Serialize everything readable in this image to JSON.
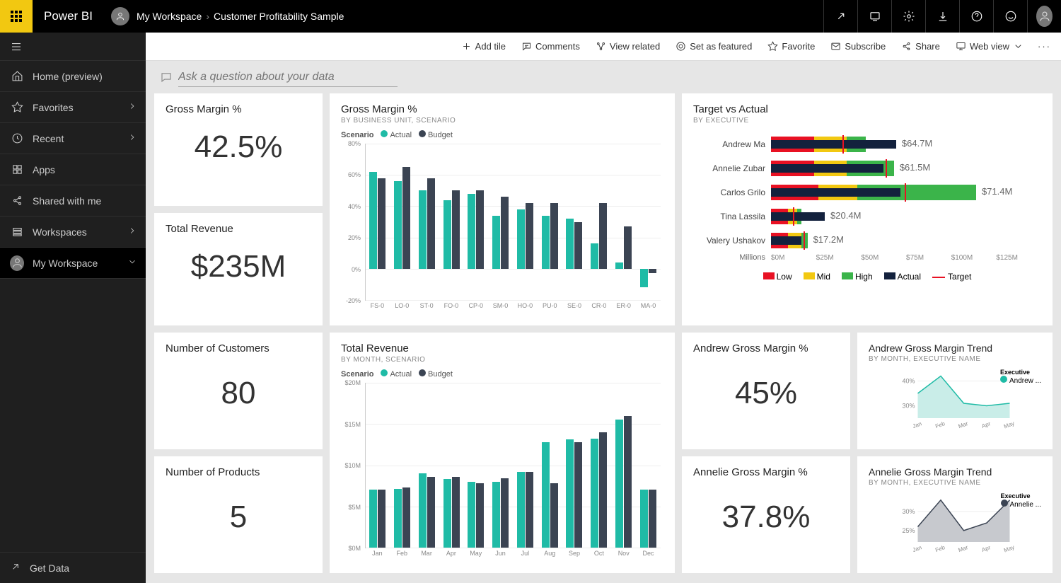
{
  "header": {
    "brand": "Power BI",
    "breadcrumb": [
      "My Workspace",
      "Customer Profitability Sample"
    ]
  },
  "sidebar": {
    "items": [
      {
        "label": "Home (preview)",
        "icon": "home",
        "chev": false
      },
      {
        "label": "Favorites",
        "icon": "star",
        "chev": true
      },
      {
        "label": "Recent",
        "icon": "clock",
        "chev": true
      },
      {
        "label": "Apps",
        "icon": "grid",
        "chev": false
      },
      {
        "label": "Shared with me",
        "icon": "share",
        "chev": false
      },
      {
        "label": "Workspaces",
        "icon": "stack",
        "chev": true
      },
      {
        "label": "My Workspace",
        "icon": "avatar",
        "chev": true,
        "active": true,
        "chevDown": true
      }
    ],
    "getData": "Get Data"
  },
  "toolbar": {
    "items": [
      {
        "label": "Add tile",
        "icon": "plus"
      },
      {
        "label": "Comments",
        "icon": "comment"
      },
      {
        "label": "View related",
        "icon": "related"
      },
      {
        "label": "Set as featured",
        "icon": "target"
      },
      {
        "label": "Favorite",
        "icon": "star"
      },
      {
        "label": "Subscribe",
        "icon": "mail"
      },
      {
        "label": "Share",
        "icon": "share"
      },
      {
        "label": "Web view",
        "icon": "monitor",
        "dropdown": true
      }
    ]
  },
  "qna": {
    "placeholder": "Ask a question about your data"
  },
  "colors": {
    "actual": "#1fbba6",
    "budget": "#3b4453",
    "low": "#e81123",
    "mid": "#f2c811",
    "high": "#3bb44a",
    "actualDark": "#13213d",
    "target": "#e81123",
    "grey": "#888"
  },
  "tiles": {
    "gm_kpi": {
      "title": "Gross Margin %",
      "value": "42.5%"
    },
    "rev_kpi": {
      "title": "Total Revenue",
      "value": "$235M"
    },
    "cust_kpi": {
      "title": "Number of Customers",
      "value": "80"
    },
    "prod_kpi": {
      "title": "Number of Products",
      "value": "5"
    },
    "gm_chart": {
      "title": "Gross Margin %",
      "subtitle": "BY BUSINESS UNIT, SCENARIO",
      "legend_label": "Scenario",
      "series_labels": [
        "Actual",
        "Budget"
      ],
      "ylim": [
        -20,
        80
      ],
      "yticks": [
        "-20%",
        "0%",
        "20%",
        "40%",
        "60%",
        "80%"
      ],
      "categories": [
        "FS-0",
        "LO-0",
        "ST-0",
        "FO-0",
        "CP-0",
        "SM-0",
        "HO-0",
        "PU-0",
        "SE-0",
        "CR-0",
        "ER-0",
        "MA-0"
      ],
      "actual": [
        62,
        56,
        50,
        44,
        48,
        34,
        38,
        34,
        32,
        16,
        4,
        -12
      ],
      "budget": [
        58,
        65,
        58,
        50,
        50,
        46,
        42,
        42,
        30,
        42,
        27,
        -3
      ]
    },
    "target_actual": {
      "title": "Target vs Actual",
      "subtitle": "BY EXECUTIVE",
      "axis_label": "Millions",
      "xticks": [
        "$0M",
        "$25M",
        "$50M",
        "$75M",
        "$100M",
        "$125M"
      ],
      "xmax": 125,
      "legend": [
        "Low",
        "Mid",
        "High",
        "Actual",
        "Target"
      ],
      "rows": [
        {
          "name": "Andrew Ma",
          "low": 20,
          "mid": 35,
          "high": 44,
          "actual": 58,
          "target": 33,
          "label": "$64.7M"
        },
        {
          "name": "Annelie Zubar",
          "low": 20,
          "mid": 35,
          "high": 57,
          "actual": 52,
          "target": 53,
          "label": "$61.5M"
        },
        {
          "name": "Carlos Grilo",
          "low": 22,
          "mid": 40,
          "high": 95,
          "actual": 60,
          "target": 62,
          "label": "$71.4M"
        },
        {
          "name": "Tina Lassila",
          "low": 8,
          "mid": 12,
          "high": 14,
          "actual": 25,
          "target": 10,
          "label": "$20.4M"
        },
        {
          "name": "Valery Ushakov",
          "low": 8,
          "mid": 14,
          "high": 17,
          "actual": 14,
          "target": 15,
          "label": "$17.2M"
        }
      ]
    },
    "rev_chart": {
      "title": "Total Revenue",
      "subtitle": "BY MONTH, SCENARIO",
      "legend_label": "Scenario",
      "series_labels": [
        "Actual",
        "Budget"
      ],
      "ylim": [
        0,
        20
      ],
      "yticks": [
        "$0M",
        "$5M",
        "$10M",
        "$15M",
        "$20M"
      ],
      "categories": [
        "Jan",
        "Feb",
        "Mar",
        "Apr",
        "May",
        "Jun",
        "Jul",
        "Aug",
        "Sep",
        "Oct",
        "Nov",
        "Dec"
      ],
      "actual": [
        7,
        7.1,
        9,
        8.3,
        8,
        8,
        9.2,
        12.8,
        13.1,
        13.2,
        15.5,
        7
      ],
      "budget": [
        7,
        7.3,
        8.6,
        8.6,
        7.8,
        8.4,
        9.2,
        7.8,
        12.8,
        14,
        16,
        7
      ]
    },
    "andrew_kpi": {
      "title": "Andrew Gross Margin %",
      "value": "45%"
    },
    "annelie_kpi": {
      "title": "Annelie Gross Margin %",
      "value": "37.8%"
    },
    "andrew_trend": {
      "title": "Andrew Gross Margin Trend",
      "subtitle": "BY MONTH, EXECUTIVE NAME",
      "legend_title": "Executive",
      "legend_item": "Andrew ...",
      "yticks": [
        "30%",
        "40%"
      ],
      "categories": [
        "Jan",
        "Feb",
        "Mar",
        "Apr",
        "May"
      ],
      "values": [
        35,
        42,
        31,
        30,
        31
      ],
      "ylim": [
        25,
        45
      ],
      "color": "#1fbba6",
      "fill": "#c9ede8"
    },
    "annelie_trend": {
      "title": "Annelie Gross Margin Trend",
      "subtitle": "BY MONTH, EXECUTIVE NAME",
      "legend_title": "Executive",
      "legend_item": "Annelie ...",
      "yticks": [
        "25%",
        "30%"
      ],
      "categories": [
        "Jan",
        "Feb",
        "Mar",
        "Apr",
        "May"
      ],
      "values": [
        26,
        33,
        25,
        27,
        33
      ],
      "ylim": [
        22,
        35
      ],
      "color": "#3b4453",
      "fill": "#c7c9ce"
    }
  }
}
